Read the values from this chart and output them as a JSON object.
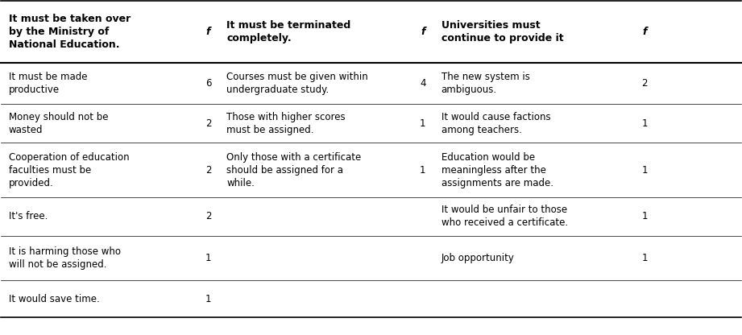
{
  "col1_header": "It must be taken over\nby the Ministry of\nNational Education.",
  "col2_header": "f",
  "col3_header": "It must be terminated\ncompletely.",
  "col4_header": "f",
  "col5_header": "Universities must\ncontinue to provide it",
  "col6_header": "f",
  "col1_rows": [
    "It must be made\nproductive",
    "Money should not be\nwasted",
    "Cooperation of education\nfaculties must be\nprovided.",
    "It's free.",
    "It is harming those who\nwill not be assigned.",
    "It would save time."
  ],
  "col2_rows": [
    "6",
    "2",
    "2",
    "2",
    "1",
    "1"
  ],
  "col3_rows": [
    "Courses must be given within\nundergraduate study.",
    "Those with higher scores\nmust be assigned.",
    "Only those with a certificate\nshould be assigned for a\nwhile.",
    "",
    "",
    ""
  ],
  "col4_rows": [
    "4",
    "1",
    "1",
    "",
    "",
    ""
  ],
  "col5_rows": [
    "The new system is\nambiguous.",
    "It would cause factions\namong teachers.",
    "Education would be\nmeaningless after the\nassignments are made.",
    "It would be unfair to those\nwho received a certificate.",
    "Job opportunity",
    ""
  ],
  "col6_rows": [
    "2",
    "1",
    "1",
    "1",
    "1",
    ""
  ],
  "figsize": [
    9.21,
    4.16
  ],
  "dpi": 100,
  "header_fontsize": 9,
  "cell_fontsize": 8.5,
  "bg_color": "#ffffff",
  "text_color": "#000000"
}
